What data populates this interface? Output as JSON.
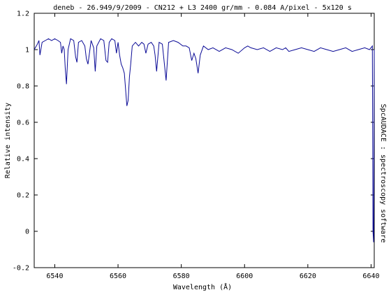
{
  "chart_data": {
    "type": "line",
    "title": "deneb - 26.949/9/2009 - CN212 + L3 2400 gr/mm - 0.084 A/pixel - 5x120 s",
    "xlabel": "Wavelength (Å)",
    "ylabel": "Relative intensity",
    "side_label": "SpcAUDACE : spectroscopy software",
    "xlim": [
      6533.5,
      6641
    ],
    "ylim": [
      -0.2,
      1.2
    ],
    "x_ticks": [
      6540,
      6560,
      6580,
      6600,
      6620,
      6640
    ],
    "y_ticks": [
      1.2,
      1,
      0.8,
      0.6,
      0.4,
      0.2,
      0,
      -0.2
    ],
    "y_tick_labels": [
      "1.2",
      "1",
      "0.8",
      "0.6",
      "0.4",
      "0.2",
      "0",
      "-0.2"
    ],
    "grid": false,
    "legend": "none",
    "colors": {
      "series": "#0a0a96",
      "axes": "#000000",
      "background": "#ffffff"
    },
    "series": [
      {
        "x": [
          6533.5,
          6534.5,
          6535.0,
          6535.3,
          6536.0,
          6537.0,
          6538.0,
          6539.0,
          6540.0,
          6541.0,
          6541.8,
          6542.2,
          6542.6,
          6543.0,
          6543.3,
          6543.7,
          6544.2,
          6545.0,
          6546.0,
          6546.6,
          6547.0,
          6547.5,
          6548.5,
          6549.5,
          6550.0,
          6550.5,
          6551.5,
          6552.3,
          6552.8,
          6553.3,
          6554.5,
          6555.5,
          6556.2,
          6556.7,
          6557.2,
          6558.0,
          6559.0,
          6559.5,
          6560.0,
          6560.5,
          6561.0,
          6561.5,
          6562.0,
          6562.4,
          6562.8,
          6563.2,
          6563.6,
          6564.0,
          6564.5,
          6565.5,
          6566.5,
          6567.5,
          6568.2,
          6568.8,
          6569.5,
          6570.5,
          6571.3,
          6571.7,
          6572.2,
          6573.0,
          6574.0,
          6574.6,
          6575.2,
          6576.0,
          6577.5,
          6579.0,
          6580.5,
          6581.5,
          6582.5,
          6583.3,
          6584.0,
          6584.6,
          6585.3,
          6586.0,
          6587.0,
          6588.5,
          6590.0,
          6592.0,
          6594.0,
          6596.0,
          6598.0,
          6600.0,
          6601.0,
          6602.0,
          6604.0,
          6606.0,
          6608.0,
          6610.0,
          6612.0,
          6613.0,
          6614.0,
          6616.0,
          6618.0,
          6620.0,
          6622.0,
          6624.0,
          6626.0,
          6628.0,
          6630.0,
          6632.0,
          6634.0,
          6636.0,
          6638.0,
          6639.5,
          6640.4,
          6640.6,
          6640.8,
          6641.0
        ],
        "y": [
          1.0,
          1.03,
          1.05,
          0.97,
          1.04,
          1.05,
          1.06,
          1.05,
          1.06,
          1.05,
          1.04,
          0.98,
          1.02,
          1.0,
          0.9,
          0.81,
          1.0,
          1.06,
          1.05,
          0.96,
          0.93,
          1.04,
          1.05,
          1.02,
          0.95,
          0.92,
          1.05,
          1.01,
          0.88,
          1.02,
          1.06,
          1.05,
          0.94,
          0.93,
          1.04,
          1.06,
          1.05,
          0.98,
          1.04,
          0.97,
          0.92,
          0.9,
          0.87,
          0.78,
          0.69,
          0.72,
          0.85,
          0.92,
          1.02,
          1.04,
          1.02,
          1.04,
          1.03,
          0.98,
          1.03,
          1.04,
          1.02,
          0.97,
          0.88,
          1.04,
          1.03,
          0.93,
          0.83,
          1.04,
          1.05,
          1.04,
          1.02,
          1.02,
          1.01,
          0.94,
          0.98,
          0.95,
          0.87,
          0.97,
          1.02,
          1.0,
          1.01,
          0.99,
          1.01,
          1.0,
          0.98,
          1.01,
          1.02,
          1.01,
          1.0,
          1.01,
          0.99,
          1.01,
          1.0,
          1.01,
          0.99,
          1.0,
          1.01,
          1.0,
          0.99,
          1.01,
          1.0,
          0.99,
          1.0,
          1.01,
          0.99,
          1.0,
          1.01,
          1.0,
          1.02,
          0.0,
          -0.06,
          1.0
        ]
      }
    ]
  }
}
